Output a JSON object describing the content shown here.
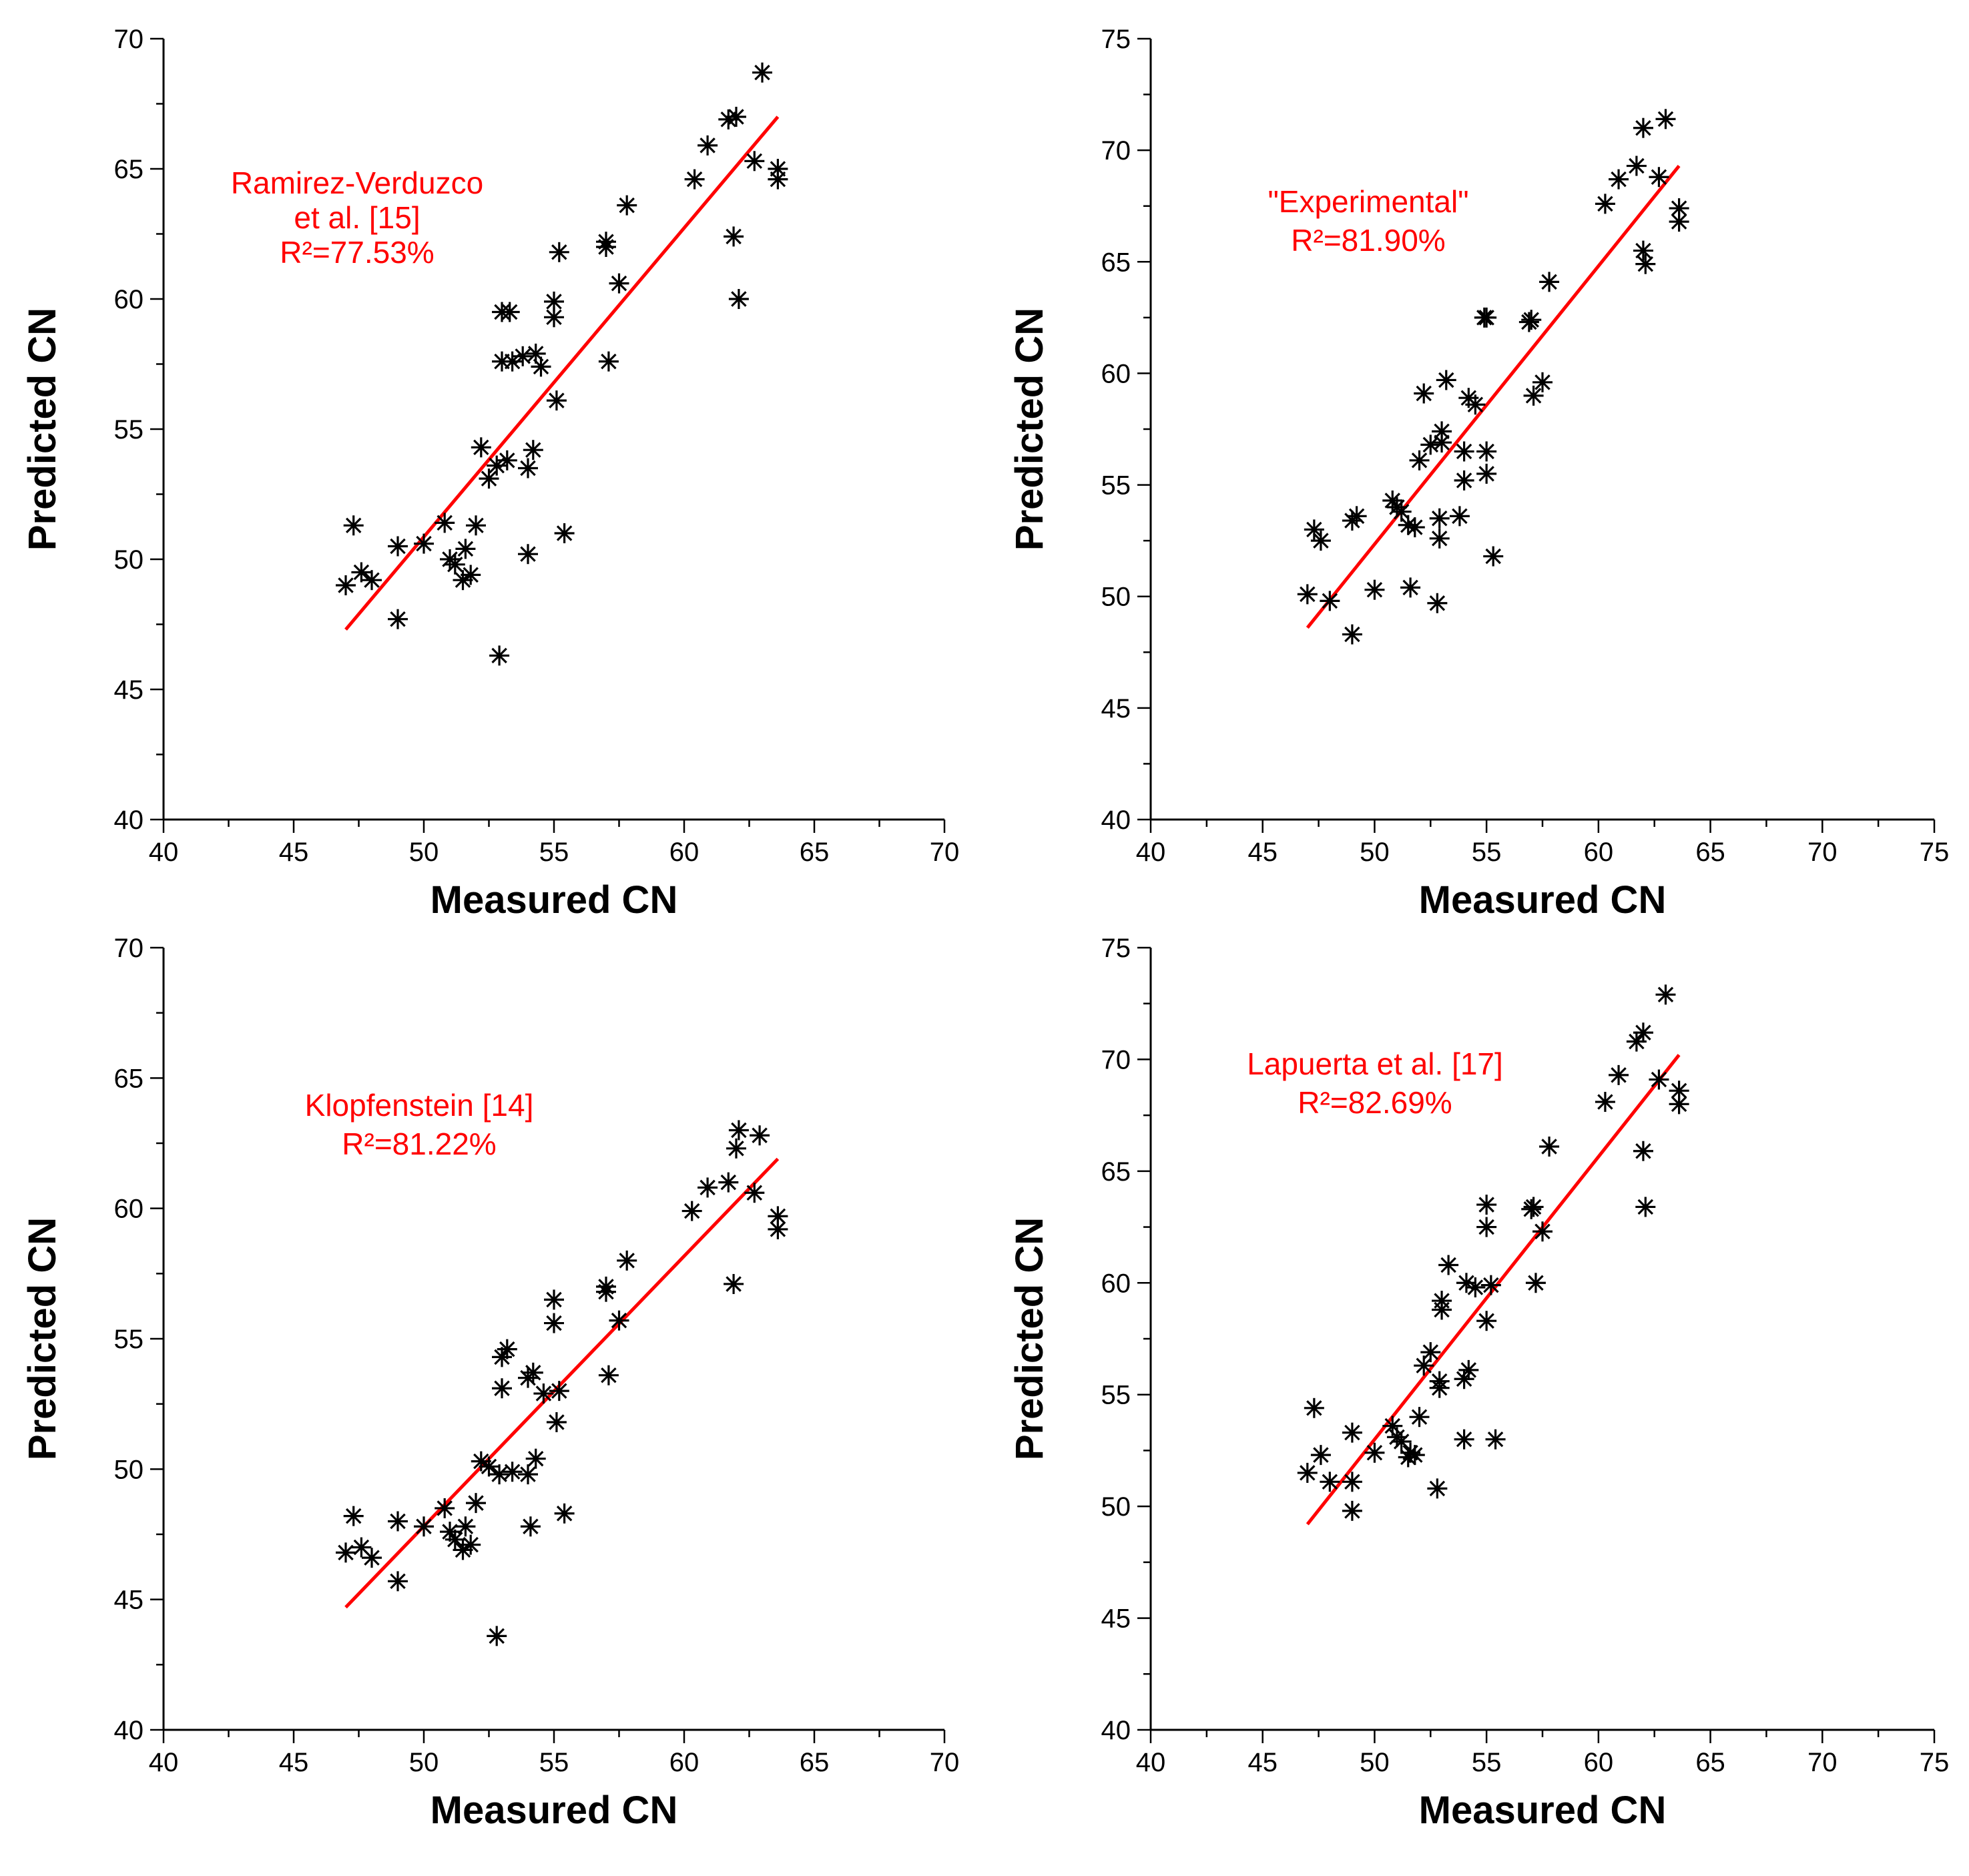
{
  "figure": {
    "annotation_color": "#ff0000",
    "fit_line_color": "#ff0000",
    "marker_color": "#000000"
  },
  "chart_data": [
    {
      "type": "scatter",
      "title": "",
      "xlabel": "Measured CN",
      "ylabel": "Predicted CN",
      "xlim": [
        40,
        70
      ],
      "ylim": [
        40,
        70
      ],
      "xticks": [
        "40",
        "45",
        "50",
        "55",
        "60",
        "65",
        "70"
      ],
      "yticks": [
        "40",
        "45",
        "50",
        "55",
        "60",
        "65",
        "70"
      ],
      "annotation": [
        "Ramirez-Verduzco",
        "et al. [15]",
        "R²=77.53%"
      ],
      "fit_line": {
        "x": [
          47.0,
          63.6
        ],
        "y": [
          47.3,
          67.0
        ]
      },
      "points": [
        [
          47.0,
          49.0
        ],
        [
          47.3,
          51.3
        ],
        [
          47.6,
          49.5
        ],
        [
          48.0,
          49.2
        ],
        [
          49.0,
          47.7
        ],
        [
          49.0,
          50.5
        ],
        [
          50.0,
          50.6
        ],
        [
          50.8,
          51.4
        ],
        [
          51.0,
          50.0
        ],
        [
          51.2,
          49.8
        ],
        [
          51.5,
          49.2
        ],
        [
          51.6,
          50.4
        ],
        [
          51.8,
          49.4
        ],
        [
          52.0,
          51.3
        ],
        [
          52.2,
          54.3
        ],
        [
          52.5,
          53.1
        ],
        [
          52.8,
          53.6
        ],
        [
          52.9,
          46.3
        ],
        [
          53.0,
          57.6
        ],
        [
          53.0,
          59.5
        ],
        [
          53.2,
          53.8
        ],
        [
          53.3,
          59.5
        ],
        [
          53.4,
          57.6
        ],
        [
          53.8,
          57.8
        ],
        [
          54.0,
          53.5
        ],
        [
          54.0,
          50.2
        ],
        [
          54.2,
          54.2
        ],
        [
          54.3,
          57.9
        ],
        [
          54.5,
          57.4
        ],
        [
          55.0,
          59.9
        ],
        [
          55.0,
          59.3
        ],
        [
          55.1,
          56.1
        ],
        [
          55.2,
          61.8
        ],
        [
          55.4,
          51.0
        ],
        [
          57.0,
          62.0
        ],
        [
          57.0,
          62.2
        ],
        [
          57.1,
          57.6
        ],
        [
          57.5,
          60.6
        ],
        [
          57.8,
          63.6
        ],
        [
          60.4,
          64.6
        ],
        [
          60.9,
          65.9
        ],
        [
          61.7,
          66.9
        ],
        [
          61.9,
          62.4
        ],
        [
          62.0,
          67.0
        ],
        [
          62.1,
          60.0
        ],
        [
          62.7,
          65.3
        ],
        [
          63.0,
          68.7
        ],
        [
          63.6,
          65.0
        ],
        [
          63.6,
          64.6
        ]
      ]
    },
    {
      "type": "scatter",
      "title": "",
      "xlabel": "Measured CN",
      "ylabel": "Predicted CN",
      "xlim": [
        40,
        75
      ],
      "ylim": [
        40,
        75
      ],
      "xticks": [
        "40",
        "45",
        "50",
        "55",
        "60",
        "65",
        "70",
        "75"
      ],
      "yticks": [
        "40",
        "45",
        "50",
        "55",
        "60",
        "65",
        "70",
        "75"
      ],
      "annotation": [
        "\"Experimental\"",
        "R²=81.90%"
      ],
      "fit_line": {
        "x": [
          47.0,
          63.6
        ],
        "y": [
          48.6,
          69.3
        ]
      },
      "points": [
        [
          47.0,
          50.1
        ],
        [
          47.3,
          53.0
        ],
        [
          47.6,
          52.5
        ],
        [
          48.0,
          49.8
        ],
        [
          49.0,
          48.3
        ],
        [
          49.0,
          53.4
        ],
        [
          49.2,
          53.6
        ],
        [
          50.0,
          50.3
        ],
        [
          50.8,
          54.3
        ],
        [
          51.0,
          54.0
        ],
        [
          51.2,
          53.8
        ],
        [
          51.5,
          53.2
        ],
        [
          51.6,
          50.4
        ],
        [
          51.8,
          53.1
        ],
        [
          52.0,
          56.1
        ],
        [
          52.2,
          59.1
        ],
        [
          52.5,
          56.8
        ],
        [
          52.8,
          49.7
        ],
        [
          52.9,
          53.5
        ],
        [
          52.9,
          52.6
        ],
        [
          53.0,
          57.4
        ],
        [
          53.0,
          56.9
        ],
        [
          53.2,
          59.7
        ],
        [
          53.8,
          53.6
        ],
        [
          54.0,
          56.5
        ],
        [
          54.0,
          55.2
        ],
        [
          54.2,
          58.9
        ],
        [
          54.5,
          58.6
        ],
        [
          54.9,
          62.5
        ],
        [
          55.0,
          62.5
        ],
        [
          55.0,
          56.5
        ],
        [
          55.0,
          55.5
        ],
        [
          55.3,
          51.8
        ],
        [
          56.9,
          62.3
        ],
        [
          57.0,
          62.4
        ],
        [
          57.1,
          59.0
        ],
        [
          57.5,
          59.6
        ],
        [
          57.8,
          64.1
        ],
        [
          60.3,
          67.6
        ],
        [
          60.9,
          68.7
        ],
        [
          61.7,
          69.3
        ],
        [
          62.0,
          71.0
        ],
        [
          62.0,
          65.5
        ],
        [
          62.1,
          64.9
        ],
        [
          62.7,
          68.8
        ],
        [
          63.0,
          71.4
        ],
        [
          63.6,
          67.4
        ],
        [
          63.6,
          66.8
        ]
      ]
    },
    {
      "type": "scatter",
      "title": "",
      "xlabel": "Measured CN",
      "ylabel": "Predicted CN",
      "xlim": [
        40,
        70
      ],
      "ylim": [
        40,
        70
      ],
      "xticks": [
        "40",
        "45",
        "50",
        "55",
        "60",
        "65",
        "70"
      ],
      "yticks": [
        "40",
        "45",
        "50",
        "55",
        "60",
        "65",
        "70"
      ],
      "annotation": [
        "Klopfenstein [14]",
        "R²=81.22%"
      ],
      "fit_line": {
        "x": [
          47.0,
          63.6
        ],
        "y": [
          44.7,
          61.9
        ]
      },
      "points": [
        [
          47.0,
          46.8
        ],
        [
          47.3,
          48.2
        ],
        [
          47.6,
          47.0
        ],
        [
          48.0,
          46.6
        ],
        [
          49.0,
          45.7
        ],
        [
          49.0,
          48.0
        ],
        [
          50.0,
          47.8
        ],
        [
          50.8,
          48.5
        ],
        [
          51.0,
          47.6
        ],
        [
          51.2,
          47.3
        ],
        [
          51.5,
          46.9
        ],
        [
          51.6,
          47.8
        ],
        [
          51.8,
          47.1
        ],
        [
          52.0,
          48.7
        ],
        [
          52.2,
          50.3
        ],
        [
          52.5,
          50.1
        ],
        [
          52.8,
          43.6
        ],
        [
          52.9,
          49.8
        ],
        [
          53.0,
          53.1
        ],
        [
          53.0,
          54.3
        ],
        [
          53.2,
          54.6
        ],
        [
          53.4,
          49.9
        ],
        [
          54.0,
          53.5
        ],
        [
          54.0,
          49.8
        ],
        [
          54.1,
          47.8
        ],
        [
          54.2,
          53.7
        ],
        [
          54.3,
          50.4
        ],
        [
          54.6,
          52.9
        ],
        [
          55.0,
          56.5
        ],
        [
          55.0,
          55.6
        ],
        [
          55.1,
          51.8
        ],
        [
          55.2,
          53.0
        ],
        [
          55.4,
          48.3
        ],
        [
          57.0,
          56.8
        ],
        [
          57.0,
          57.0
        ],
        [
          57.1,
          53.6
        ],
        [
          57.5,
          55.7
        ],
        [
          57.8,
          58.0
        ],
        [
          60.3,
          59.9
        ],
        [
          60.9,
          60.8
        ],
        [
          61.7,
          61.0
        ],
        [
          61.9,
          57.1
        ],
        [
          62.0,
          62.3
        ],
        [
          62.1,
          63.0
        ],
        [
          62.7,
          60.6
        ],
        [
          62.9,
          62.8
        ],
        [
          63.6,
          59.7
        ],
        [
          63.6,
          59.2
        ]
      ]
    },
    {
      "type": "scatter",
      "title": "",
      "xlabel": "Measured CN",
      "ylabel": "Predicted CN",
      "xlim": [
        40,
        75
      ],
      "ylim": [
        40,
        75
      ],
      "xticks": [
        "40",
        "45",
        "50",
        "55",
        "60",
        "65",
        "70",
        "75"
      ],
      "yticks": [
        "40",
        "45",
        "50",
        "55",
        "60",
        "65",
        "70",
        "75"
      ],
      "annotation": [
        "Lapuerta et al. [17]",
        "R²=82.69%"
      ],
      "fit_line": {
        "x": [
          47.0,
          63.6
        ],
        "y": [
          49.2,
          70.2
        ]
      },
      "points": [
        [
          47.0,
          51.5
        ],
        [
          47.3,
          54.4
        ],
        [
          47.6,
          52.3
        ],
        [
          48.0,
          51.1
        ],
        [
          49.0,
          49.8
        ],
        [
          49.0,
          53.3
        ],
        [
          49.0,
          51.1
        ],
        [
          50.0,
          52.4
        ],
        [
          50.8,
          53.6
        ],
        [
          51.0,
          53.1
        ],
        [
          51.2,
          52.9
        ],
        [
          51.5,
          52.2
        ],
        [
          51.6,
          52.4
        ],
        [
          51.8,
          52.3
        ],
        [
          52.0,
          54.0
        ],
        [
          52.2,
          56.3
        ],
        [
          52.5,
          56.9
        ],
        [
          52.8,
          50.8
        ],
        [
          52.9,
          55.6
        ],
        [
          52.9,
          55.3
        ],
        [
          53.0,
          59.2
        ],
        [
          53.0,
          58.8
        ],
        [
          53.3,
          60.8
        ],
        [
          54.0,
          53.0
        ],
        [
          54.0,
          55.7
        ],
        [
          54.1,
          60.0
        ],
        [
          54.2,
          56.1
        ],
        [
          54.5,
          59.8
        ],
        [
          55.0,
          63.5
        ],
        [
          55.0,
          62.5
        ],
        [
          55.0,
          58.3
        ],
        [
          55.2,
          59.9
        ],
        [
          55.4,
          53.0
        ],
        [
          57.0,
          63.3
        ],
        [
          57.1,
          63.4
        ],
        [
          57.2,
          60.0
        ],
        [
          57.5,
          62.3
        ],
        [
          57.8,
          66.1
        ],
        [
          60.3,
          68.1
        ],
        [
          60.9,
          69.3
        ],
        [
          61.7,
          70.8
        ],
        [
          62.0,
          71.2
        ],
        [
          62.0,
          65.9
        ],
        [
          62.1,
          63.4
        ],
        [
          62.7,
          69.1
        ],
        [
          63.0,
          72.9
        ],
        [
          63.6,
          68.6
        ],
        [
          63.6,
          68.0
        ]
      ]
    }
  ]
}
